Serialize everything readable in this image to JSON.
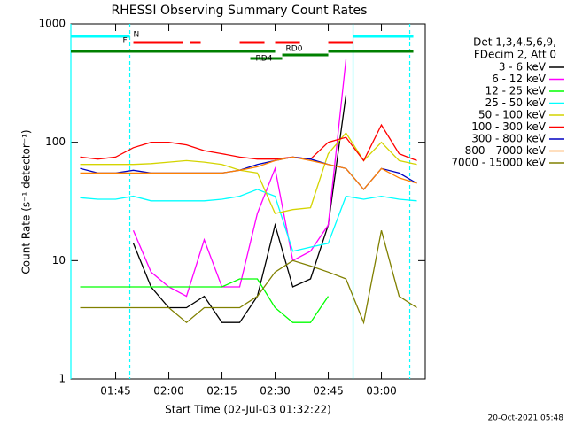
{
  "chart_data": {
    "type": "line",
    "title": "RHESSI Observing Summary Count Rates",
    "xlabel": "Start Time (02-Jul-03 01:32:22)",
    "ylabel": "Count Rate (s⁻¹ detector⁻¹)",
    "footer": "20-Oct-2021 05:48",
    "legend_header": [
      "Det 1,3,4,5,6,9,",
      "FDecim 2, Att 0"
    ],
    "log_y": true,
    "xlim": [
      "01:32:22",
      "03:12:22"
    ],
    "xticks": [
      "01:45",
      "02:00",
      "02:15",
      "02:30",
      "02:45",
      "03:00"
    ],
    "ylim": [
      1,
      1000
    ],
    "yticks": [
      1,
      10,
      100,
      1000
    ],
    "x": [
      "01:35",
      "01:40",
      "01:45",
      "01:50",
      "01:55",
      "02:00",
      "02:05",
      "02:10",
      "02:15",
      "02:20",
      "02:25",
      "02:30",
      "02:35",
      "02:40",
      "02:45",
      "02:50",
      "02:55",
      "03:00",
      "03:05",
      "03:10"
    ],
    "series": [
      {
        "name": "3 - 6 keV",
        "color": "#000000",
        "values": [
          null,
          null,
          null,
          14,
          6,
          4,
          4,
          5,
          3,
          3,
          5,
          20,
          6,
          7,
          20,
          250,
          null,
          null,
          null,
          null
        ]
      },
      {
        "name": "6 - 12 keV",
        "color": "#ff00ff",
        "values": [
          null,
          null,
          null,
          18,
          8,
          6,
          5,
          15,
          6,
          6,
          25,
          60,
          10,
          12,
          20,
          500,
          null,
          null,
          null,
          null
        ]
      },
      {
        "name": "12 - 25 keV",
        "color": "#00ff00",
        "values": [
          6,
          6,
          6,
          6,
          6,
          6,
          6,
          6,
          6,
          7,
          7,
          4,
          3,
          3,
          5,
          null,
          null,
          null,
          null,
          null
        ]
      },
      {
        "name": "25 - 50 keV",
        "color": "#00ffff",
        "values": [
          34,
          33,
          33,
          35,
          32,
          32,
          32,
          32,
          33,
          35,
          40,
          35,
          12,
          13,
          14,
          35,
          33,
          35,
          33,
          32
        ]
      },
      {
        "name": "50 - 100 keV",
        "color": "#d4d400",
        "values": [
          65,
          65,
          65,
          65,
          66,
          68,
          70,
          68,
          65,
          58,
          55,
          25,
          27,
          28,
          80,
          120,
          70,
          100,
          70,
          65
        ]
      },
      {
        "name": "100 - 300 keV",
        "color": "#ff0000",
        "values": [
          75,
          72,
          75,
          90,
          100,
          100,
          95,
          85,
          80,
          75,
          72,
          72,
          75,
          72,
          100,
          110,
          70,
          140,
          80,
          70
        ]
      },
      {
        "name": "300 - 800 keV",
        "color": "#0000c0",
        "values": [
          60,
          55,
          55,
          58,
          55,
          55,
          55,
          55,
          55,
          58,
          65,
          70,
          75,
          72,
          65,
          60,
          40,
          60,
          55,
          45
        ]
      },
      {
        "name": "800 - 7000 keV",
        "color": "#ff8000",
        "values": [
          55,
          55,
          55,
          55,
          55,
          55,
          55,
          55,
          55,
          58,
          62,
          70,
          75,
          70,
          65,
          60,
          40,
          60,
          50,
          45
        ]
      },
      {
        "name": "7000 - 15000 keV",
        "color": "#808000",
        "values": [
          4,
          4,
          4,
          4,
          4,
          4,
          3,
          4,
          4,
          4,
          5,
          8,
          10,
          9,
          8,
          7,
          3,
          18,
          5,
          4
        ]
      }
    ],
    "markers": [
      {
        "time": "01:32:22",
        "color": "#00ffff",
        "dashed": false
      },
      {
        "time": "01:49",
        "color": "#00ffff",
        "dashed": true
      },
      {
        "time": "02:52",
        "color": "#00ffff",
        "dashed": false
      },
      {
        "time": "03:08",
        "color": "#00ffff",
        "dashed": true
      }
    ],
    "flags": [
      {
        "label": "N",
        "color": "#00ffff",
        "segments": [
          [
            "01:32:22",
            "01:49"
          ],
          [
            "02:52",
            "03:09"
          ]
        ]
      },
      {
        "label": "F",
        "color": "#ff0000",
        "segments": [
          [
            "01:50",
            "02:04"
          ],
          [
            "02:06",
            "02:09"
          ],
          [
            "02:20",
            "02:27"
          ],
          [
            "02:30",
            "02:37"
          ],
          [
            "02:45",
            "02:52"
          ]
        ]
      },
      {
        "label": "RD0",
        "color": "#008000",
        "segments": [
          [
            "01:32:22",
            "02:30"
          ],
          [
            "02:32",
            "02:45"
          ],
          [
            "02:45",
            "03:09"
          ]
        ]
      },
      {
        "label": "RD4",
        "color": "#008000",
        "segments": [
          [
            "02:23",
            "02:32"
          ]
        ]
      }
    ]
  }
}
